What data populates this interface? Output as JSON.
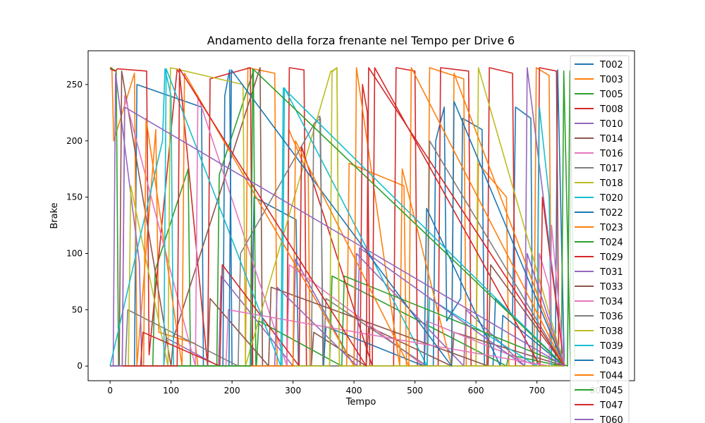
{
  "chart_data": {
    "type": "line",
    "title": "Andamento della forza frenante nel Tempo per Drive 6",
    "xlabel": "Tempo",
    "ylabel": "Brake",
    "xlim": [
      -36,
      860
    ],
    "ylim": [
      -13,
      280
    ],
    "x_ticks": [
      0,
      100,
      200,
      300,
      400,
      500,
      600,
      700,
      800
    ],
    "y_ticks": [
      0,
      50,
      100,
      150,
      200,
      250
    ],
    "grid": false,
    "legend_position": "top-right",
    "series": [
      {
        "name": "T002",
        "color": "#1f77b4",
        "x": [
          0,
          40,
          44,
          150,
          153,
          185,
          188,
          196,
          200,
          232,
          236,
          305,
          309,
          530,
          534,
          548,
          552,
          575,
          578,
          610,
          614,
          628,
          632,
          660,
          665,
          690,
          693,
          730,
          734,
          745
        ],
        "y": [
          0,
          0,
          250,
          230,
          0,
          0,
          240,
          263,
          0,
          0,
          150,
          130,
          0,
          0,
          200,
          230,
          40,
          60,
          220,
          210,
          0,
          0,
          60,
          45,
          230,
          220,
          0,
          0,
          263,
          0
        ]
      },
      {
        "name": "T003",
        "color": "#ff7f0e",
        "x": [
          0,
          3,
          6,
          40,
          44,
          75,
          80,
          140,
          144,
          222,
          226,
          270,
          274,
          290,
          293,
          325,
          328,
          388,
          392,
          482,
          486,
          520,
          524,
          580,
          584,
          600,
          604,
          650,
          654,
          695,
          699,
          720,
          724,
          745
        ],
        "y": [
          265,
          265,
          200,
          260,
          0,
          210,
          30,
          20,
          0,
          0,
          265,
          260,
          0,
          0,
          210,
          170,
          0,
          0,
          180,
          160,
          0,
          0,
          265,
          255,
          0,
          0,
          180,
          150,
          0,
          0,
          265,
          258,
          0,
          0
        ]
      },
      {
        "name": "T005",
        "color": "#2ca02c",
        "x": [
          0,
          10,
          14,
          70,
          74,
          128,
          132,
          175,
          179,
          235,
          239,
          360,
          364,
          650,
          654,
          740,
          744,
          755
        ],
        "y": [
          265,
          262,
          0,
          0,
          85,
          175,
          0,
          0,
          170,
          262,
          0,
          0,
          80,
          0,
          10,
          0,
          262,
          0
        ]
      },
      {
        "name": "T008",
        "color": "#d62728",
        "x": [
          0,
          8,
          12,
          60,
          64,
          110,
          114,
          160,
          164,
          230,
          234,
          290,
          294,
          318,
          322,
          410,
          414,
          422,
          426,
          465,
          469,
          500,
          504,
          538,
          542,
          588,
          592,
          618,
          622,
          660,
          665,
          700,
          704,
          732,
          736,
          745
        ],
        "y": [
          264,
          262,
          264,
          262,
          10,
          264,
          260,
          0,
          255,
          265,
          0,
          0,
          265,
          263,
          0,
          0,
          250,
          225,
          0,
          0,
          265,
          262,
          0,
          0,
          265,
          262,
          0,
          0,
          265,
          260,
          0,
          0,
          265,
          262,
          0,
          0
        ]
      },
      {
        "name": "T010",
        "color": "#9467bd",
        "x": [
          0,
          5,
          9,
          48,
          52,
          88,
          92,
          178,
          182,
          300,
          304,
          400,
          404,
          580,
          584,
          680,
          684,
          745
        ],
        "y": [
          0,
          0,
          260,
          92,
          0,
          0,
          25,
          0,
          80,
          0,
          95,
          0,
          100,
          0,
          50,
          0,
          265,
          0
        ]
      },
      {
        "name": "T014",
        "color": "#8c564b",
        "x": [
          0,
          15,
          19,
          100,
          104,
          246,
          250,
          330,
          334,
          420,
          424,
          560,
          564,
          745
        ],
        "y": [
          0,
          0,
          262,
          0,
          25,
          265,
          0,
          0,
          30,
          0,
          35,
          0,
          30,
          0
        ]
      },
      {
        "name": "T016",
        "color": "#e377c2",
        "x": [
          0,
          20,
          24,
          140,
          144,
          290,
          294,
          515,
          519,
          700,
          704,
          720,
          724,
          745
        ],
        "y": [
          0,
          0,
          240,
          0,
          240,
          0,
          90,
          0,
          40,
          0,
          100,
          70,
          0,
          0
        ]
      },
      {
        "name": "T017",
        "color": "#7f7f7f",
        "x": [
          0,
          25,
          29,
          210,
          214,
          340,
          344,
          350,
          354,
          520,
          524,
          745
        ],
        "y": [
          0,
          0,
          50,
          0,
          100,
          220,
          222,
          0,
          60,
          0,
          200,
          0
        ]
      },
      {
        "name": "T018",
        "color": "#bcbd22",
        "x": [
          0,
          30,
          34,
          95,
          99,
          218,
          222,
          362,
          366,
          372,
          376,
          600,
          604,
          745
        ],
        "y": [
          0,
          0,
          160,
          0,
          265,
          250,
          0,
          262,
          262,
          265,
          0,
          0,
          265,
          0
        ]
      },
      {
        "name": "T020",
        "color": "#17becf",
        "x": [
          0,
          86,
          90,
          100,
          104,
          282,
          286,
          520,
          524,
          700,
          704,
          720,
          724,
          745
        ],
        "y": [
          0,
          200,
          264,
          240,
          0,
          0,
          247,
          0,
          60,
          0,
          230,
          150,
          0,
          0
        ]
      },
      {
        "name": "T022",
        "color": "#1f77b4",
        "x": [
          0,
          350,
          354,
          515,
          519,
          640,
          644,
          745
        ],
        "y": [
          0,
          0,
          35,
          0,
          140,
          0,
          45,
          0
        ]
      },
      {
        "name": "T023",
        "color": "#ff7f0e",
        "x": [
          0,
          55,
          59,
          118,
          122,
          400,
          404,
          475,
          479,
          560,
          564,
          745
        ],
        "y": [
          0,
          0,
          220,
          0,
          260,
          0,
          265,
          0,
          175,
          0,
          260,
          0
        ]
      },
      {
        "name": "T024",
        "color": "#2ca02c",
        "x": [
          0,
          240,
          244,
          380,
          384,
          750,
          754,
          762
        ],
        "y": [
          0,
          0,
          40,
          0,
          80,
          0,
          262,
          0
        ]
      },
      {
        "name": "T029",
        "color": "#d62728",
        "x": [
          0,
          50,
          54,
          180,
          184,
          310,
          314,
          430,
          434,
          705,
          709,
          745
        ],
        "y": [
          0,
          0,
          30,
          0,
          90,
          0,
          195,
          0,
          265,
          0,
          150,
          0
        ]
      },
      {
        "name": "T031",
        "color": "#9467bd",
        "x": [
          0,
          270,
          274,
          405,
          409,
          680,
          684,
          745
        ],
        "y": [
          0,
          0,
          70,
          0,
          105,
          0,
          100,
          0
        ]
      },
      {
        "name": "T033",
        "color": "#8c564b",
        "x": [
          0,
          160,
          164,
          260,
          264,
          620,
          624,
          745
        ],
        "y": [
          0,
          0,
          60,
          0,
          70,
          0,
          90,
          0
        ]
      },
      {
        "name": "T034",
        "color": "#e377c2",
        "x": [
          0,
          190,
          194,
          720,
          724,
          745
        ],
        "y": [
          0,
          0,
          50,
          0,
          125,
          0
        ]
      },
      {
        "name": "T036",
        "color": "#7f7f7f",
        "x": [
          0,
          330,
          334,
          345,
          349,
          745
        ],
        "y": [
          0,
          0,
          215,
          220,
          0,
          0
        ]
      },
      {
        "name": "T038",
        "color": "#bcbd22",
        "x": [
          0,
          360,
          364,
          372,
          376,
          745
        ],
        "y": [
          0,
          0,
          262,
          265,
          0,
          0
        ]
      },
      {
        "name": "T039",
        "color": "#17becf",
        "x": [
          0,
          88,
          92,
          280,
          284,
          745
        ],
        "y": [
          0,
          0,
          264,
          0,
          247,
          0
        ]
      },
      {
        "name": "T043",
        "color": "#1f77b4",
        "x": [
          0,
          195,
          199,
          560,
          564,
          745
        ],
        "y": [
          0,
          0,
          263,
          0,
          235,
          0
        ]
      },
      {
        "name": "T044",
        "color": "#ff7f0e",
        "x": [
          0,
          300,
          304,
          490,
          494,
          745
        ],
        "y": [
          0,
          0,
          200,
          0,
          265,
          0
        ]
      },
      {
        "name": "T045",
        "color": "#2ca02c",
        "x": [
          0,
          230,
          234,
          745
        ],
        "y": [
          0,
          0,
          264,
          0
        ]
      },
      {
        "name": "T047",
        "color": "#d62728",
        "x": [
          0,
          110,
          114,
          420,
          424,
          745
        ],
        "y": [
          0,
          0,
          264,
          0,
          265,
          0
        ]
      },
      {
        "name": "T060",
        "color": "#9467bd",
        "x": [
          0,
          20,
          24,
          745
        ],
        "y": [
          0,
          0,
          230,
          0
        ]
      }
    ]
  }
}
